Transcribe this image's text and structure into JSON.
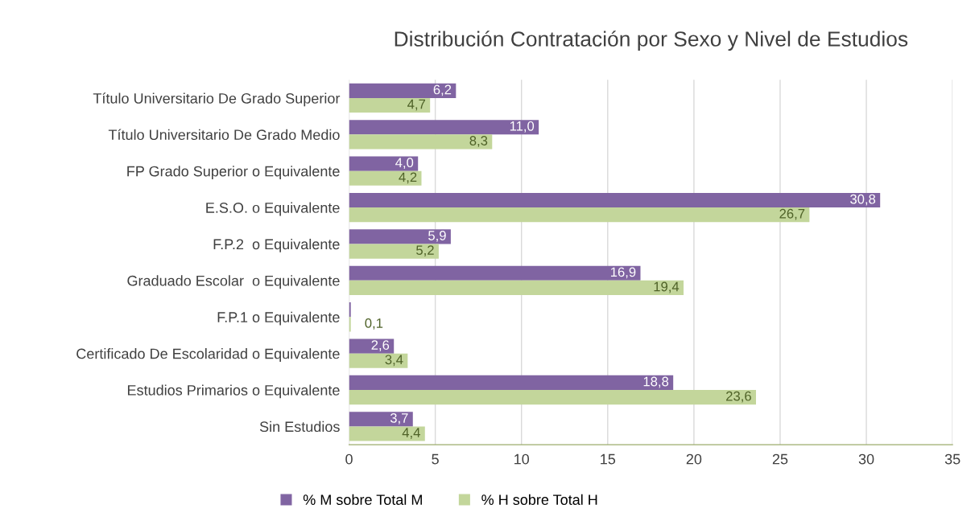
{
  "chart_data": {
    "type": "bar",
    "orientation": "horizontal",
    "title": "Distribución Contratación por Sexo y Nivel de Estudios",
    "categories": [
      "Título Universitario De Grado Superior",
      "Título Universitario De Grado Medio",
      "FP Grado Superior o Equivalente",
      "E.S.O. o Equivalente",
      "F.P.2  o Equivalente",
      "Graduado Escolar  o Equivalente",
      "F.P.1 o Equivalente",
      "Certificado De Escolaridad o Equivalente",
      "Estudios Primarios o Equivalente",
      "Sin Estudios"
    ],
    "series": [
      {
        "name": "% M sobre Total M",
        "color": "#8064a2",
        "values": [
          6.2,
          11.0,
          4.0,
          30.8,
          5.9,
          16.9,
          0.1,
          2.6,
          18.8,
          3.7
        ],
        "value_labels": [
          "6,2",
          "11,0",
          "4,0",
          "30,8",
          "5,9",
          "16,9",
          null,
          "2,6",
          "18,8",
          "3,7"
        ]
      },
      {
        "name": "% H sobre Total H",
        "color": "#c3d69b",
        "values": [
          4.7,
          8.3,
          4.2,
          26.7,
          5.2,
          19.4,
          0.1,
          3.4,
          23.6,
          4.4
        ],
        "value_labels": [
          "4,7",
          "8,3",
          "4,2",
          "26,7",
          "5,2",
          "19,4",
          "0,1",
          "3,4",
          "23,6",
          "4,4"
        ]
      }
    ],
    "xlim": [
      0,
      35
    ],
    "xticks": [
      0,
      5,
      10,
      15,
      20,
      25,
      30,
      35
    ],
    "grid": "x",
    "legend": "bottom"
  }
}
